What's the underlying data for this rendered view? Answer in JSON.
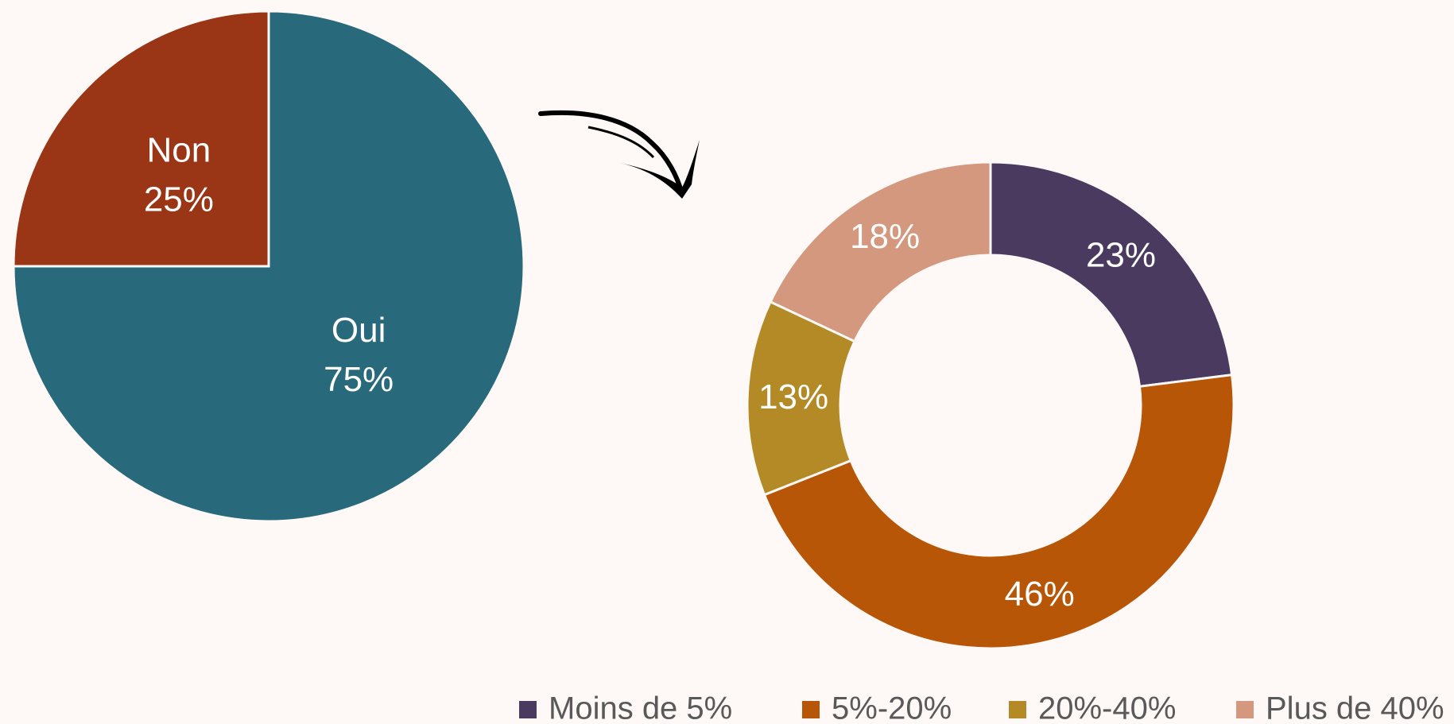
{
  "chart_data": [
    {
      "type": "pie",
      "categories": [
        "Oui",
        "Non"
      ],
      "values": [
        75,
        25
      ],
      "value_labels": [
        "75%",
        "25%"
      ],
      "colors": [
        "#286a7c",
        "#9a3515"
      ]
    },
    {
      "type": "donut",
      "categories": [
        "Moins de 5%",
        "5%-20%",
        "20%-40%",
        "Plus de 40%"
      ],
      "values": [
        23,
        46,
        13,
        18
      ],
      "value_labels": [
        "23%",
        "46%",
        "13%",
        "18%"
      ],
      "colors": [
        "#4b3a5f",
        "#b85607",
        "#b38a25",
        "#d3987e"
      ],
      "legend": "bottom"
    }
  ]
}
